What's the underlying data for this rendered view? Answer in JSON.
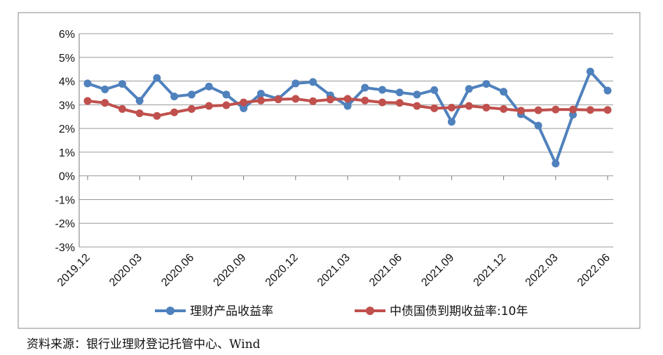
{
  "chart_data": {
    "type": "line",
    "title": "",
    "xlabel": "",
    "ylabel": "",
    "x": [
      "2019.12",
      "2020.01",
      "2020.02",
      "2020.03",
      "2020.04",
      "2020.05",
      "2020.06",
      "2020.07",
      "2020.08",
      "2020.09",
      "2020.10",
      "2020.11",
      "2020.12",
      "2021.01",
      "2021.02",
      "2021.03",
      "2021.04",
      "2021.05",
      "2021.06",
      "2021.07",
      "2021.08",
      "2021.09",
      "2021.10",
      "2021.11",
      "2021.12",
      "2022.01",
      "2022.02",
      "2022.03",
      "2022.04",
      "2022.05",
      "2022.06"
    ],
    "x_tick_labels": [
      "2019.12",
      "2020.03",
      "2020.06",
      "2020.09",
      "2020.12",
      "2021.03",
      "2021.06",
      "2021.09",
      "2021.12",
      "2022.03",
      "2022.06"
    ],
    "y_tick_labels": [
      "6%",
      "5%",
      "4%",
      "3%",
      "2%",
      "1%",
      "0%",
      "-1%",
      "-2%",
      "-3%"
    ],
    "ylim": [
      -3,
      6
    ],
    "grid": true,
    "legend_position": "bottom",
    "series": [
      {
        "name": "理财产品收益率",
        "color": "#4f81bd",
        "values": [
          3.9,
          3.65,
          3.88,
          3.17,
          4.13,
          3.35,
          3.43,
          3.77,
          3.43,
          2.85,
          3.47,
          3.25,
          3.9,
          3.96,
          3.4,
          2.95,
          3.72,
          3.63,
          3.52,
          3.43,
          3.62,
          2.28,
          3.67,
          3.88,
          3.55,
          2.6,
          2.12,
          0.52,
          2.58,
          4.4,
          3.6
        ]
      },
      {
        "name": "中债国债到期收益率:10年",
        "color": "#c0504d",
        "values": [
          3.16,
          3.08,
          2.82,
          2.64,
          2.53,
          2.68,
          2.82,
          2.95,
          2.98,
          3.1,
          3.18,
          3.23,
          3.25,
          3.15,
          3.22,
          3.25,
          3.18,
          3.1,
          3.08,
          2.95,
          2.85,
          2.88,
          2.95,
          2.88,
          2.82,
          2.75,
          2.77,
          2.8,
          2.8,
          2.78,
          2.78
        ]
      }
    ]
  },
  "source": "资料来源：银行业理财登记托管中心、Wind"
}
